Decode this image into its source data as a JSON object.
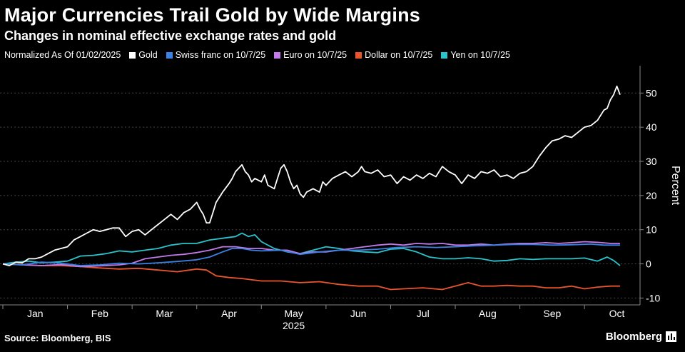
{
  "header": {
    "title": "Major Currencies Trail Gold by Wide Margins",
    "subtitle": "Changes in nominal effective exchange rates and gold"
  },
  "legend": {
    "note": "Normalized As Of 01/02/2025",
    "items": [
      {
        "label": "Gold",
        "color": "#ffffff"
      },
      {
        "label": "Swiss franc on 10/7/25",
        "color": "#3b82e6"
      },
      {
        "label": "Euro on 10/7/25",
        "color": "#c27be8"
      },
      {
        "label": "Dollar on 10/7/25",
        "color": "#e8552c"
      },
      {
        "label": "Yen on 10/7/25",
        "color": "#29c4cc"
      }
    ]
  },
  "footer": {
    "source": "Source: Bloomberg, BIS",
    "brand": "Bloomberg"
  },
  "chart_data": {
    "type": "line",
    "ylabel": "Percent",
    "ylim": [
      -12,
      58
    ],
    "yticks": [
      -10,
      0,
      10,
      20,
      30,
      40,
      50
    ],
    "xlim": [
      0,
      9.55
    ],
    "xticks": [
      {
        "label": "Jan",
        "x": 0.5
      },
      {
        "label": "Feb",
        "x": 1.5
      },
      {
        "label": "Mar",
        "x": 2.5
      },
      {
        "label": "Apr",
        "x": 3.5
      },
      {
        "label": "May",
        "x": 4.5
      },
      {
        "label": "Jun",
        "x": 5.5
      },
      {
        "label": "Jul",
        "x": 6.5
      },
      {
        "label": "Aug",
        "x": 7.5
      },
      {
        "label": "Sep",
        "x": 8.5
      },
      {
        "label": "Oct",
        "x": 9.5
      }
    ],
    "year_label": "2025",
    "grid": true,
    "series": [
      {
        "name": "Gold",
        "color": "#ffffff",
        "points": [
          [
            0,
            0
          ],
          [
            0.1,
            -0.5
          ],
          [
            0.2,
            0.5
          ],
          [
            0.3,
            0.3
          ],
          [
            0.4,
            1.5
          ],
          [
            0.5,
            1.5
          ],
          [
            0.6,
            2
          ],
          [
            0.7,
            3
          ],
          [
            0.8,
            4
          ],
          [
            0.9,
            4.5
          ],
          [
            1.0,
            5
          ],
          [
            1.1,
            7
          ],
          [
            1.2,
            8
          ],
          [
            1.3,
            9
          ],
          [
            1.4,
            10
          ],
          [
            1.5,
            9.5
          ],
          [
            1.6,
            10
          ],
          [
            1.7,
            10.5
          ],
          [
            1.8,
            10.5
          ],
          [
            1.9,
            8
          ],
          [
            2.0,
            9.5
          ],
          [
            2.1,
            10
          ],
          [
            2.2,
            8.5
          ],
          [
            2.3,
            10
          ],
          [
            2.4,
            11.5
          ],
          [
            2.5,
            13
          ],
          [
            2.6,
            14.5
          ],
          [
            2.7,
            13
          ],
          [
            2.8,
            15
          ],
          [
            2.9,
            16
          ],
          [
            3.0,
            18
          ],
          [
            3.05,
            16
          ],
          [
            3.1,
            14.5
          ],
          [
            3.15,
            12
          ],
          [
            3.2,
            12
          ],
          [
            3.25,
            15
          ],
          [
            3.3,
            18
          ],
          [
            3.4,
            21
          ],
          [
            3.5,
            23.5
          ],
          [
            3.55,
            25
          ],
          [
            3.6,
            27
          ],
          [
            3.7,
            29
          ],
          [
            3.75,
            27
          ],
          [
            3.8,
            26
          ],
          [
            3.85,
            24
          ],
          [
            3.9,
            25
          ],
          [
            4.0,
            24
          ],
          [
            4.05,
            26
          ],
          [
            4.1,
            23
          ],
          [
            4.2,
            22
          ],
          [
            4.25,
            25
          ],
          [
            4.3,
            28
          ],
          [
            4.35,
            29
          ],
          [
            4.4,
            27
          ],
          [
            4.45,
            24
          ],
          [
            4.5,
            22
          ],
          [
            4.55,
            23
          ],
          [
            4.6,
            20.5
          ],
          [
            4.65,
            19.5
          ],
          [
            4.7,
            21
          ],
          [
            4.8,
            22
          ],
          [
            4.9,
            21
          ],
          [
            4.95,
            24
          ],
          [
            5.0,
            23
          ],
          [
            5.1,
            25
          ],
          [
            5.2,
            26
          ],
          [
            5.3,
            27
          ],
          [
            5.4,
            25.5
          ],
          [
            5.5,
            27
          ],
          [
            5.55,
            28.5
          ],
          [
            5.6,
            27
          ],
          [
            5.7,
            26.5
          ],
          [
            5.8,
            27.5
          ],
          [
            5.9,
            25.5
          ],
          [
            6.0,
            26
          ],
          [
            6.1,
            23.5
          ],
          [
            6.2,
            25.5
          ],
          [
            6.3,
            24.5
          ],
          [
            6.4,
            26
          ],
          [
            6.5,
            25
          ],
          [
            6.6,
            26.5
          ],
          [
            6.7,
            25.5
          ],
          [
            6.8,
            28.5
          ],
          [
            6.9,
            27
          ],
          [
            7.0,
            26
          ],
          [
            7.1,
            23.5
          ],
          [
            7.2,
            26
          ],
          [
            7.3,
            25
          ],
          [
            7.4,
            27
          ],
          [
            7.5,
            26.5
          ],
          [
            7.6,
            27.5
          ],
          [
            7.7,
            25.5
          ],
          [
            7.8,
            26
          ],
          [
            7.9,
            25
          ],
          [
            8.0,
            26.5
          ],
          [
            8.1,
            27
          ],
          [
            8.2,
            28.5
          ],
          [
            8.3,
            31.5
          ],
          [
            8.4,
            34
          ],
          [
            8.5,
            36
          ],
          [
            8.6,
            36.5
          ],
          [
            8.7,
            37.5
          ],
          [
            8.8,
            37
          ],
          [
            8.9,
            38.5
          ],
          [
            9.0,
            40
          ],
          [
            9.1,
            40.5
          ],
          [
            9.2,
            42
          ],
          [
            9.3,
            45
          ],
          [
            9.35,
            45.5
          ],
          [
            9.4,
            48
          ],
          [
            9.45,
            49.5
          ],
          [
            9.5,
            52
          ],
          [
            9.55,
            49.5
          ]
        ]
      },
      {
        "name": "Swiss franc on 10/7/25",
        "color": "#3b82e6",
        "points": [
          [
            0,
            0
          ],
          [
            0.3,
            -0.3
          ],
          [
            0.6,
            0.5
          ],
          [
            0.9,
            0.2
          ],
          [
            1.2,
            -0.5
          ],
          [
            1.5,
            -0.3
          ],
          [
            1.8,
            0.2
          ],
          [
            2.1,
            0
          ],
          [
            2.4,
            0.3
          ],
          [
            2.7,
            0.7
          ],
          [
            3.0,
            1.2
          ],
          [
            3.2,
            2
          ],
          [
            3.4,
            3.5
          ],
          [
            3.55,
            4.5
          ],
          [
            3.7,
            4.5
          ],
          [
            3.85,
            4
          ],
          [
            4.0,
            3.8
          ],
          [
            4.3,
            4
          ],
          [
            4.6,
            2.8
          ],
          [
            4.9,
            3.5
          ],
          [
            5.2,
            4
          ],
          [
            5.5,
            4
          ],
          [
            5.8,
            4.3
          ],
          [
            6.1,
            4.8
          ],
          [
            6.4,
            5
          ],
          [
            6.7,
            4.8
          ],
          [
            7.0,
            5
          ],
          [
            7.3,
            5.3
          ],
          [
            7.6,
            5.5
          ],
          [
            7.9,
            5.7
          ],
          [
            8.2,
            5.7
          ],
          [
            8.5,
            5.5
          ],
          [
            8.8,
            5.6
          ],
          [
            9.1,
            5.8
          ],
          [
            9.3,
            5.5
          ],
          [
            9.55,
            5.5
          ]
        ]
      },
      {
        "name": "Euro on 10/7/25",
        "color": "#c27be8",
        "points": [
          [
            0,
            0
          ],
          [
            0.3,
            -0.3
          ],
          [
            0.6,
            -0.5
          ],
          [
            0.9,
            -0.2
          ],
          [
            1.2,
            -0.8
          ],
          [
            1.5,
            -0.6
          ],
          [
            1.8,
            -0.3
          ],
          [
            2.0,
            0.2
          ],
          [
            2.2,
            1.5
          ],
          [
            2.4,
            2
          ],
          [
            2.6,
            2.5
          ],
          [
            2.8,
            2.8
          ],
          [
            3.0,
            3.3
          ],
          [
            3.2,
            4
          ],
          [
            3.4,
            5
          ],
          [
            3.6,
            5
          ],
          [
            3.8,
            4.5
          ],
          [
            4.0,
            4.5
          ],
          [
            4.2,
            4
          ],
          [
            4.4,
            4
          ],
          [
            4.6,
            3
          ],
          [
            4.8,
            3.5
          ],
          [
            5.0,
            3.5
          ],
          [
            5.2,
            4
          ],
          [
            5.4,
            4.5
          ],
          [
            5.6,
            5
          ],
          [
            5.8,
            5.5
          ],
          [
            6.0,
            5.8
          ],
          [
            6.2,
            5.5
          ],
          [
            6.4,
            6
          ],
          [
            6.6,
            5.8
          ],
          [
            6.8,
            6
          ],
          [
            7.0,
            5.5
          ],
          [
            7.2,
            5.5
          ],
          [
            7.4,
            5.8
          ],
          [
            7.6,
            5.5
          ],
          [
            7.8,
            5.8
          ],
          [
            8.0,
            6
          ],
          [
            8.2,
            6
          ],
          [
            8.4,
            6.2
          ],
          [
            8.6,
            6
          ],
          [
            8.8,
            6.2
          ],
          [
            9.0,
            6.5
          ],
          [
            9.2,
            6.3
          ],
          [
            9.4,
            6
          ],
          [
            9.55,
            6
          ]
        ]
      },
      {
        "name": "Dollar on 10/7/25",
        "color": "#e8552c",
        "points": [
          [
            0,
            0
          ],
          [
            0.3,
            -0.2
          ],
          [
            0.6,
            -0.5
          ],
          [
            0.9,
            -0.5
          ],
          [
            1.2,
            -0.8
          ],
          [
            1.5,
            -1.2
          ],
          [
            1.8,
            -1.5
          ],
          [
            2.1,
            -1.3
          ],
          [
            2.4,
            -1.8
          ],
          [
            2.7,
            -2.3
          ],
          [
            3.0,
            -1.5
          ],
          [
            3.15,
            -1.8
          ],
          [
            3.3,
            -3.5
          ],
          [
            3.5,
            -4
          ],
          [
            3.7,
            -4.3
          ],
          [
            4.0,
            -5
          ],
          [
            4.3,
            -5
          ],
          [
            4.6,
            -5.5
          ],
          [
            4.9,
            -5.2
          ],
          [
            5.2,
            -6
          ],
          [
            5.5,
            -6.5
          ],
          [
            5.8,
            -6.5
          ],
          [
            6.0,
            -7.5
          ],
          [
            6.2,
            -7.3
          ],
          [
            6.5,
            -7
          ],
          [
            6.8,
            -7.5
          ],
          [
            7.0,
            -6.5
          ],
          [
            7.2,
            -5.5
          ],
          [
            7.4,
            -6.5
          ],
          [
            7.6,
            -6.5
          ],
          [
            7.8,
            -6.3
          ],
          [
            8.0,
            -6.5
          ],
          [
            8.2,
            -6.5
          ],
          [
            8.4,
            -7
          ],
          [
            8.6,
            -7
          ],
          [
            8.8,
            -6.5
          ],
          [
            9.0,
            -7.3
          ],
          [
            9.2,
            -6.8
          ],
          [
            9.4,
            -6.5
          ],
          [
            9.55,
            -6.5
          ]
        ]
      },
      {
        "name": "Yen on 10/7/25",
        "color": "#29c4cc",
        "points": [
          [
            0,
            0
          ],
          [
            0.2,
            0.5
          ],
          [
            0.4,
            0.8
          ],
          [
            0.6,
            0.3
          ],
          [
            0.8,
            0.5
          ],
          [
            1.0,
            0.8
          ],
          [
            1.2,
            2.3
          ],
          [
            1.4,
            2.5
          ],
          [
            1.6,
            3
          ],
          [
            1.8,
            3.8
          ],
          [
            2.0,
            3.5
          ],
          [
            2.2,
            4
          ],
          [
            2.4,
            4.5
          ],
          [
            2.6,
            5.5
          ],
          [
            2.8,
            6
          ],
          [
            3.0,
            6
          ],
          [
            3.2,
            7
          ],
          [
            3.4,
            7.5
          ],
          [
            3.6,
            8
          ],
          [
            3.7,
            9
          ],
          [
            3.8,
            8
          ],
          [
            3.9,
            8.5
          ],
          [
            4.0,
            6.5
          ],
          [
            4.2,
            4.5
          ],
          [
            4.4,
            3.5
          ],
          [
            4.6,
            3
          ],
          [
            4.8,
            4
          ],
          [
            5.0,
            5
          ],
          [
            5.2,
            4.5
          ],
          [
            5.4,
            3.8
          ],
          [
            5.6,
            3.5
          ],
          [
            5.8,
            3.3
          ],
          [
            6.0,
            4.3
          ],
          [
            6.2,
            4.5
          ],
          [
            6.4,
            3.5
          ],
          [
            6.6,
            2
          ],
          [
            6.8,
            1.5
          ],
          [
            7.0,
            1.5
          ],
          [
            7.2,
            1.8
          ],
          [
            7.4,
            1.5
          ],
          [
            7.6,
            0.8
          ],
          [
            7.8,
            1
          ],
          [
            8.0,
            1.5
          ],
          [
            8.2,
            1.3
          ],
          [
            8.4,
            1.5
          ],
          [
            8.6,
            1.5
          ],
          [
            8.8,
            1.5
          ],
          [
            9.0,
            1.7
          ],
          [
            9.2,
            0.8
          ],
          [
            9.35,
            2
          ],
          [
            9.45,
            1
          ],
          [
            9.55,
            -0.5
          ]
        ]
      }
    ]
  }
}
